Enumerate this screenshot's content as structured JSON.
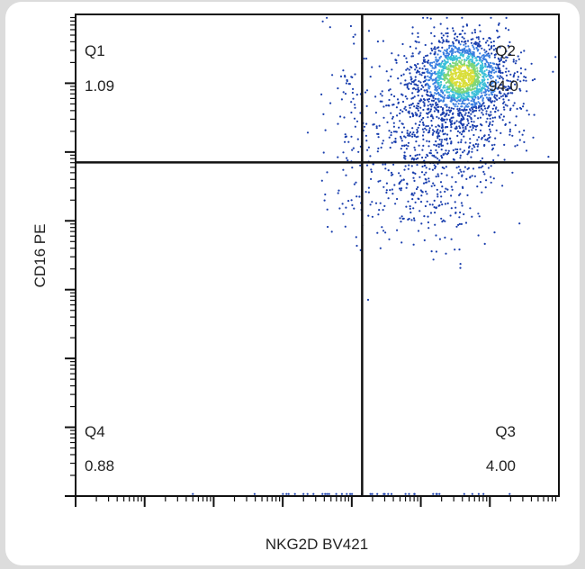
{
  "chart_data": {
    "type": "scatter",
    "title": "",
    "xlabel": "NKG2D BV421",
    "ylabel": "CD16 PE",
    "x_scale": "log",
    "y_scale": "log",
    "xlim": [
      0,
      7
    ],
    "ylim": [
      0,
      7
    ],
    "grid": false,
    "gates": {
      "x": 4.15,
      "y": 4.85
    },
    "quadrants": [
      {
        "id": "Q1",
        "label": "Q1",
        "value": "1.09",
        "position": "top-left"
      },
      {
        "id": "Q2",
        "label": "Q2",
        "value": "94.0",
        "position": "top-right"
      },
      {
        "id": "Q3",
        "label": "Q3",
        "value": "4.00",
        "position": "bottom-right"
      },
      {
        "id": "Q4",
        "label": "Q4",
        "value": "0.88",
        "position": "bottom-left"
      }
    ],
    "density": {
      "colors": [
        "#1a3fae",
        "#3a7ee0",
        "#3cc0d8",
        "#7fd67a",
        "#d9de3b"
      ],
      "core_center": [
        5.6,
        6.1
      ],
      "events_shown": 2600
    }
  }
}
